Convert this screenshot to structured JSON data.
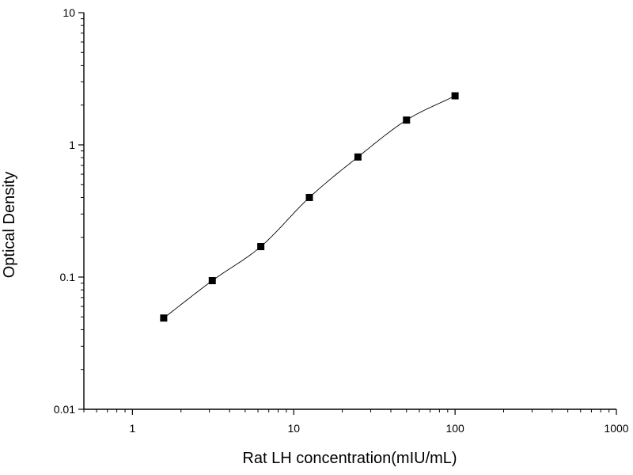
{
  "chart_data": {
    "type": "scatter",
    "title": "",
    "xlabel": "Rat LH concentration(mIU/mL)",
    "ylabel": "Optical Density",
    "x_scale": "log",
    "y_scale": "log",
    "xlim": [
      0.5,
      1000
    ],
    "ylim": [
      0.01,
      10
    ],
    "x_ticks": [
      {
        "value": 1,
        "label": "1"
      },
      {
        "value": 10,
        "label": "10"
      },
      {
        "value": 100,
        "label": "100"
      },
      {
        "value": 1000,
        "label": "1000"
      }
    ],
    "y_ticks": [
      {
        "value": 0.01,
        "label": "0.01"
      },
      {
        "value": 0.1,
        "label": "0.1"
      },
      {
        "value": 1,
        "label": "1"
      },
      {
        "value": 10,
        "label": "10"
      }
    ],
    "grid": false,
    "legend": "none",
    "series": [
      {
        "marker": "square",
        "color": "#000000",
        "points": [
          {
            "x": 1.5625,
            "y": 0.049
          },
          {
            "x": 3.125,
            "y": 0.094
          },
          {
            "x": 6.25,
            "y": 0.17
          },
          {
            "x": 12.5,
            "y": 0.4
          },
          {
            "x": 25,
            "y": 0.81
          },
          {
            "x": 50,
            "y": 1.54
          },
          {
            "x": 100,
            "y": 2.35
          }
        ]
      }
    ],
    "fit_curve": {
      "color": "#000000",
      "x_from": 1.5625,
      "x_to": 100
    }
  }
}
